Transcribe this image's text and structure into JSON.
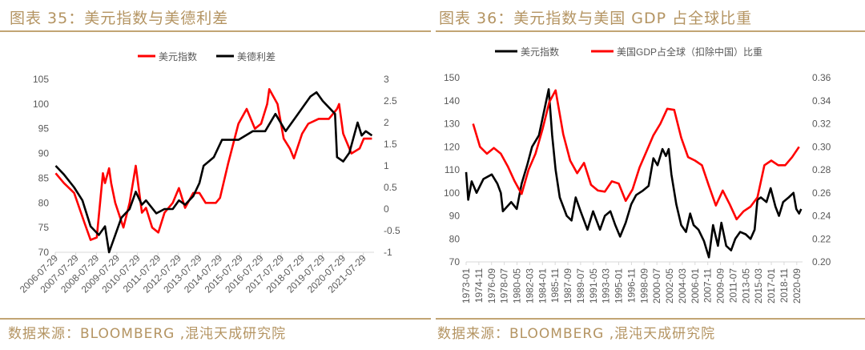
{
  "colors": {
    "accent": "#b49462",
    "red": "#ff0000",
    "black": "#000000"
  },
  "chart_data": [
    {
      "type": "line",
      "title": "图表 35：美元指数与美德利差",
      "source": "数据来源：BLOOMBERG ,混沌天成研究院",
      "legend": [
        "美元指数",
        "美德利差"
      ],
      "legend_position": "top",
      "ylim": [
        70,
        105
      ],
      "yticks": [
        "105",
        "100",
        "95",
        "90",
        "85",
        "80",
        "75",
        "70"
      ],
      "y2lim": [
        -1,
        3
      ],
      "y2ticks": [
        "3",
        "2.5",
        "2",
        "1.5",
        "1",
        "0.5",
        "0",
        "-0.5",
        "-1"
      ],
      "xlim": [
        2006.58,
        2022.1
      ],
      "xticks": [
        "2006-07-29",
        "2007-07-29",
        "2008-07-29",
        "2009-07-29",
        "2010-07-29",
        "2011-07-29",
        "2012-07-29",
        "2013-07-29",
        "2014-07-29",
        "2015-07-29",
        "2016-07-29",
        "2017-07-29",
        "2018-07-29",
        "2019-07-29",
        "2020-07-29",
        "2021-07-29"
      ],
      "series": [
        {
          "name": "美元指数",
          "axis": "left",
          "color": "#ff0000",
          "x": [
            2006.6,
            2007.0,
            2007.5,
            2008.0,
            2008.3,
            2008.6,
            2008.9,
            2009.0,
            2009.2,
            2009.3,
            2009.5,
            2009.9,
            2010.2,
            2010.5,
            2010.8,
            2011.0,
            2011.3,
            2011.6,
            2011.9,
            2012.3,
            2012.6,
            2012.9,
            2013.3,
            2013.6,
            2013.9,
            2014.4,
            2014.6,
            2015.0,
            2015.5,
            2015.9,
            2016.3,
            2016.6,
            2016.9,
            2017.0,
            2017.4,
            2017.7,
            2018.0,
            2018.2,
            2018.6,
            2018.9,
            2019.4,
            2019.9,
            2020.3,
            2020.4,
            2020.6,
            2021.0,
            2021.4,
            2021.6,
            2022.0
          ],
          "values": [
            86,
            84,
            82,
            76,
            72.5,
            73,
            86,
            84,
            87,
            84,
            80,
            75,
            80,
            87.5,
            78,
            79,
            75,
            74,
            78,
            80,
            83,
            79,
            82,
            82,
            80,
            80,
            81,
            88,
            96,
            99,
            95,
            96,
            100,
            103,
            100,
            93,
            91,
            89,
            94,
            96,
            97,
            97,
            99,
            100,
            94,
            90,
            91,
            93,
            93
          ]
        },
        {
          "name": "美德利差",
          "axis": "right",
          "color": "#000000",
          "x": [
            2006.6,
            2007.0,
            2007.5,
            2007.9,
            2008.3,
            2008.7,
            2009.0,
            2009.2,
            2009.5,
            2009.8,
            2010.2,
            2010.5,
            2010.8,
            2011.0,
            2011.5,
            2011.9,
            2012.3,
            2012.6,
            2012.9,
            2013.3,
            2013.6,
            2013.8,
            2014.3,
            2014.7,
            2015.5,
            2016.2,
            2016.8,
            2017.3,
            2017.8,
            2018.4,
            2019.0,
            2019.3,
            2019.6,
            2020.2,
            2020.3,
            2020.6,
            2020.9,
            2021.3,
            2021.5,
            2021.7,
            2022.0
          ],
          "values": [
            1,
            0.8,
            0.5,
            0.2,
            -0.4,
            -0.6,
            -0.4,
            -1,
            -0.6,
            -0.2,
            0,
            0.4,
            0.1,
            0.2,
            -0.1,
            0,
            0,
            0.2,
            0.1,
            0.3,
            0.6,
            1,
            1.2,
            1.6,
            1.6,
            1.8,
            1.8,
            2.2,
            1.8,
            2.2,
            2.6,
            2.7,
            2.5,
            2.2,
            1.2,
            1.1,
            1.3,
            2.0,
            1.7,
            1.8,
            1.7
          ]
        }
      ]
    },
    {
      "type": "line",
      "title": "图表 36：美元指数与美国 GDP 占全球比重",
      "source": "数据来源：BLOOMBERG ,混沌天成研究院",
      "legend": [
        "美元指数",
        "美国GDP占全球（扣除中国）比重"
      ],
      "legend_position": "top",
      "ylim": [
        70,
        150
      ],
      "yticks": [
        "150",
        "140",
        "130",
        "120",
        "110",
        "100",
        "90",
        "80",
        "70"
      ],
      "y2lim": [
        0.2,
        0.36
      ],
      "y2ticks": [
        "0.36",
        "0.34",
        "0.32",
        "0.30",
        "0.28",
        "0.26",
        "0.24",
        "0.22",
        "0.20"
      ],
      "xlim": [
        1973.0,
        2021.5
      ],
      "xticks": [
        "1973-01",
        "1974-11",
        "1976-09",
        "1978-07",
        "1980-05",
        "1982-03",
        "1984-01",
        "1985-11",
        "1987-09",
        "1989-07",
        "1991-05",
        "1993-03",
        "1995-01",
        "1996-11",
        "1998-09",
        "2000-07",
        "2002-05",
        "2004-03",
        "2006-01",
        "2007-11",
        "2009-09",
        "2011-07",
        "2013-05",
        "2015-03",
        "2017-01",
        "2018-11",
        "2020-09"
      ],
      "series": [
        {
          "name": "美元指数",
          "axis": "left",
          "color": "#000000",
          "x": [
            1973.0,
            1973.3,
            1973.8,
            1974.5,
            1975.5,
            1976.7,
            1977.5,
            1978.0,
            1978.3,
            1979.5,
            1980.3,
            1981.0,
            1981.8,
            1982.5,
            1983.5,
            1984.9,
            1985.4,
            1985.9,
            1986.5,
            1987.5,
            1988.2,
            1988.8,
            1989.5,
            1990.5,
            1991.3,
            1992.3,
            1993.0,
            1993.8,
            1994.5,
            1995.2,
            1996.0,
            1996.8,
            1997.5,
            1998.5,
            1999.3,
            2000.0,
            2000.6,
            2001.3,
            2001.8,
            2002.2,
            2002.6,
            2003.3,
            2004.0,
            2004.7,
            2005.3,
            2005.8,
            2006.5,
            2007.3,
            2008.0,
            2008.6,
            2009.3,
            2009.8,
            2010.5,
            2011.2,
            2011.8,
            2012.5,
            2013.3,
            2014.0,
            2014.6,
            2015.0,
            2015.5,
            2016.3,
            2016.9,
            2017.6,
            2018.1,
            2018.7,
            2019.5,
            2020.2,
            2020.6,
            2021.0,
            2021.3
          ],
          "values": [
            109,
            97,
            105,
            100,
            106,
            108,
            104,
            100,
            92,
            96,
            93,
            104,
            112,
            120,
            125,
            145,
            125,
            110,
            98,
            90,
            88,
            98,
            92,
            84,
            92,
            84,
            90,
            92,
            86,
            81,
            87,
            95,
            99,
            101,
            103,
            115,
            112,
            119,
            116,
            119,
            108,
            95,
            86,
            83,
            91,
            86,
            84,
            79,
            72,
            86,
            77,
            87,
            77,
            75,
            80,
            83,
            82,
            80,
            84,
            97,
            98,
            96,
            102,
            94,
            90,
            96,
            98,
            100,
            93,
            91,
            93
          ]
        },
        {
          "name": "美国GDP占全球（扣除中国）比重",
          "axis": "right",
          "color": "#ff0000",
          "x": [
            1974,
            1975,
            1976,
            1977,
            1978,
            1979,
            1980,
            1981,
            1982,
            1983,
            1984,
            1985,
            1985.9,
            1987,
            1988,
            1989,
            1990,
            1991,
            1992,
            1993,
            1994,
            1995,
            1996,
            1997,
            1998,
            1999,
            2000,
            2001,
            2002,
            2003,
            2004,
            2005,
            2006,
            2007,
            2008,
            2009,
            2010,
            2011,
            2012,
            2013,
            2014,
            2015,
            2016,
            2017,
            2018,
            2019,
            2020,
            2021
          ],
          "values": [
            0.32,
            0.3,
            0.294,
            0.299,
            0.294,
            0.283,
            0.27,
            0.259,
            0.28,
            0.294,
            0.315,
            0.339,
            0.349,
            0.311,
            0.288,
            0.277,
            0.286,
            0.267,
            0.262,
            0.261,
            0.27,
            0.268,
            0.253,
            0.263,
            0.282,
            0.296,
            0.31,
            0.32,
            0.333,
            0.332,
            0.308,
            0.291,
            0.288,
            0.284,
            0.266,
            0.249,
            0.262,
            0.25,
            0.237,
            0.244,
            0.248,
            0.256,
            0.284,
            0.288,
            0.284,
            0.284,
            0.291,
            0.3
          ]
        }
      ]
    }
  ]
}
